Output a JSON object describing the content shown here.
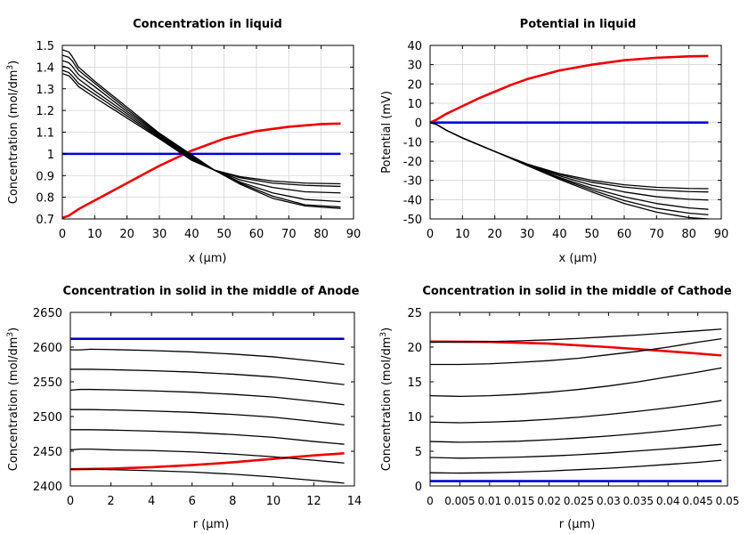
{
  "chart_data": [
    {
      "type": "line",
      "title": "Concentration in liquid",
      "xlabel": "x (µm)",
      "ylabel": "Concentration (mol/dm",
      "ylabel_sup": "3",
      "ylabel_tail": ")",
      "xlim": [
        0,
        90
      ],
      "ylim": [
        0.7,
        1.5
      ],
      "xticks": [
        "0",
        "10",
        "20",
        "30",
        "40",
        "50",
        "60",
        "70",
        "80",
        "90"
      ],
      "yticks": [
        "0.7",
        "0.8",
        "0.9",
        "1",
        "1.1",
        "1.2",
        "1.3",
        "1.4",
        "1.5"
      ],
      "grid": true,
      "series": [
        {
          "color": "#0000dd",
          "x": [
            0,
            86
          ],
          "y": [
            1.0,
            1.0
          ]
        },
        {
          "color": "#ee0000",
          "x": [
            0,
            2,
            5,
            10,
            20,
            30,
            40,
            50,
            60,
            70,
            80,
            86
          ],
          "y": [
            0.705,
            0.715,
            0.745,
            0.785,
            0.865,
            0.945,
            1.015,
            1.07,
            1.105,
            1.125,
            1.137,
            1.14
          ]
        },
        {
          "color": "#000000",
          "x": [
            0,
            2,
            3,
            5,
            10,
            20,
            30,
            40,
            47,
            55,
            65,
            75,
            86
          ],
          "y": [
            1.48,
            1.47,
            1.45,
            1.4,
            1.335,
            1.215,
            1.095,
            0.995,
            0.925,
            0.895,
            0.875,
            0.865,
            0.862
          ]
        },
        {
          "color": "#000000",
          "x": [
            0,
            2,
            3,
            5,
            10,
            20,
            30,
            40,
            47,
            55,
            65,
            75,
            86
          ],
          "y": [
            1.455,
            1.445,
            1.43,
            1.385,
            1.325,
            1.205,
            1.09,
            0.99,
            0.925,
            0.89,
            0.865,
            0.855,
            0.85
          ]
        },
        {
          "color": "#000000",
          "x": [
            0,
            2,
            3,
            5,
            10,
            20,
            30,
            40,
            47,
            55,
            65,
            75,
            86
          ],
          "y": [
            1.43,
            1.42,
            1.405,
            1.365,
            1.31,
            1.195,
            1.085,
            0.985,
            0.925,
            0.88,
            0.845,
            0.825,
            0.82
          ]
        },
        {
          "color": "#000000",
          "x": [
            0,
            2,
            3,
            5,
            10,
            20,
            30,
            40,
            47,
            55,
            65,
            75,
            86
          ],
          "y": [
            1.405,
            1.395,
            1.38,
            1.345,
            1.29,
            1.185,
            1.08,
            0.98,
            0.925,
            0.87,
            0.82,
            0.79,
            0.78
          ]
        },
        {
          "color": "#000000",
          "x": [
            0,
            2,
            3,
            5,
            10,
            20,
            30,
            40,
            47,
            55,
            65,
            75,
            86
          ],
          "y": [
            1.385,
            1.375,
            1.36,
            1.325,
            1.275,
            1.175,
            1.075,
            0.975,
            0.925,
            0.865,
            0.805,
            0.765,
            0.755
          ]
        },
        {
          "color": "#000000",
          "x": [
            0,
            2,
            3,
            5,
            10,
            20,
            30,
            40,
            47,
            55,
            65,
            75,
            86
          ],
          "y": [
            1.37,
            1.36,
            1.345,
            1.31,
            1.26,
            1.165,
            1.07,
            0.97,
            0.925,
            0.86,
            0.795,
            0.76,
            0.748
          ]
        }
      ]
    },
    {
      "type": "line",
      "title": "Potential in liquid",
      "xlabel": "x (µm)",
      "ylabel": "Potential (mV)",
      "xlim": [
        0,
        90
      ],
      "ylim": [
        -50,
        40
      ],
      "xticks": [
        "0",
        "10",
        "20",
        "30",
        "40",
        "50",
        "60",
        "70",
        "80",
        "90"
      ],
      "yticks": [
        "-50",
        "-40",
        "-30",
        "-20",
        "-10",
        "0",
        "10",
        "20",
        "30",
        "40"
      ],
      "grid": true,
      "series": [
        {
          "color": "#0000dd",
          "x": [
            0,
            86
          ],
          "y": [
            0,
            0
          ]
        },
        {
          "color": "#ee0000",
          "x": [
            0,
            2,
            5,
            10,
            15,
            20,
            25,
            30,
            40,
            50,
            60,
            70,
            80,
            86
          ],
          "y": [
            0,
            1.5,
            4.5,
            8.5,
            12.5,
            16,
            19.5,
            22.5,
            27,
            30,
            32.3,
            33.6,
            34.3,
            34.5
          ]
        },
        {
          "color": "#000000",
          "x": [
            0,
            2,
            5,
            10,
            20,
            30,
            40,
            50,
            60,
            70,
            80,
            86
          ],
          "y": [
            0,
            -1,
            -4,
            -8,
            -15,
            -21.5,
            -26.5,
            -30,
            -32.3,
            -33.6,
            -34.2,
            -34.3
          ]
        },
        {
          "color": "#000000",
          "x": [
            0,
            2,
            5,
            10,
            20,
            30,
            40,
            50,
            60,
            70,
            80,
            86
          ],
          "y": [
            0,
            -1,
            -4,
            -8,
            -15,
            -21.7,
            -27,
            -31,
            -33.5,
            -35,
            -35.8,
            -36
          ]
        },
        {
          "color": "#000000",
          "x": [
            0,
            2,
            5,
            10,
            20,
            30,
            40,
            50,
            60,
            70,
            80,
            86
          ],
          "y": [
            0,
            -1,
            -4,
            -8,
            -15,
            -21.8,
            -27.7,
            -32.5,
            -36,
            -38.5,
            -39.8,
            -40.2
          ]
        },
        {
          "color": "#000000",
          "x": [
            0,
            2,
            5,
            10,
            20,
            30,
            40,
            50,
            60,
            70,
            80,
            86
          ],
          "y": [
            0,
            -1,
            -4,
            -8,
            -15,
            -22,
            -28.5,
            -34,
            -38.5,
            -42,
            -44.3,
            -45
          ]
        },
        {
          "color": "#000000",
          "x": [
            0,
            2,
            5,
            10,
            20,
            30,
            40,
            50,
            60,
            70,
            80,
            86
          ],
          "y": [
            0,
            -1,
            -4,
            -8,
            -15,
            -22,
            -29,
            -35,
            -40.5,
            -44.5,
            -47,
            -47.8
          ]
        },
        {
          "color": "#000000",
          "x": [
            0,
            2,
            5,
            10,
            20,
            30,
            40,
            50,
            60,
            70,
            80,
            86
          ],
          "y": [
            0,
            -1,
            -4,
            -8,
            -15,
            -22.3,
            -29.5,
            -36,
            -42,
            -46.5,
            -49.3,
            -50
          ]
        }
      ]
    },
    {
      "type": "line",
      "title": "Concentration in solid in the middle of Anode",
      "xlabel": "r (µm)",
      "ylabel": "Concentration (mol/dm",
      "ylabel_sup": "3",
      "ylabel_tail": ")",
      "xlim": [
        0,
        14
      ],
      "ylim": [
        2400,
        2650
      ],
      "xticks": [
        "0",
        "2",
        "4",
        "6",
        "8",
        "10",
        "12",
        "14"
      ],
      "yticks": [
        "2400",
        "2450",
        "2500",
        "2550",
        "2600",
        "2650"
      ],
      "grid": false,
      "series": [
        {
          "color": "#0000dd",
          "x": [
            0,
            13.5
          ],
          "y": [
            2612,
            2612
          ]
        },
        {
          "color": "#ee0000",
          "x": [
            0,
            2,
            4,
            6,
            8,
            10,
            12,
            13.5
          ],
          "y": [
            2424,
            2425,
            2427,
            2430,
            2434,
            2439,
            2444,
            2447
          ]
        },
        {
          "color": "#000000",
          "x": [
            0,
            0.5,
            1,
            2,
            4,
            6,
            8,
            10,
            12,
            13.5
          ],
          "y": [
            2596,
            2596,
            2597,
            2596.5,
            2595,
            2593,
            2590,
            2586,
            2580,
            2575
          ]
        },
        {
          "color": "#000000",
          "x": [
            0,
            0.5,
            1,
            2,
            4,
            6,
            8,
            10,
            12,
            13.5
          ],
          "y": [
            2568,
            2568,
            2568,
            2567.5,
            2566,
            2564,
            2561,
            2557,
            2551,
            2546
          ]
        },
        {
          "color": "#000000",
          "x": [
            0,
            0.5,
            1,
            2,
            4,
            6,
            8,
            10,
            12,
            13.5
          ],
          "y": [
            2538,
            2539,
            2539,
            2538.5,
            2537,
            2535,
            2532,
            2528,
            2522,
            2517
          ]
        },
        {
          "color": "#000000",
          "x": [
            0,
            0.5,
            1,
            2,
            4,
            6,
            8,
            10,
            12,
            13.5
          ],
          "y": [
            2510,
            2510,
            2510,
            2509.5,
            2508,
            2506,
            2503,
            2499,
            2493,
            2488
          ]
        },
        {
          "color": "#000000",
          "x": [
            0,
            0.5,
            1,
            2,
            4,
            6,
            8,
            10,
            12,
            13.5
          ],
          "y": [
            2481,
            2481,
            2481,
            2480.5,
            2479,
            2477,
            2474,
            2470,
            2464,
            2460
          ]
        },
        {
          "color": "#000000",
          "x": [
            0,
            0.5,
            1,
            2,
            4,
            6,
            8,
            10,
            12,
            13.5
          ],
          "y": [
            2452,
            2453,
            2453,
            2452,
            2451,
            2449,
            2446,
            2442,
            2437,
            2433
          ]
        },
        {
          "color": "#000000",
          "x": [
            0,
            0.5,
            1,
            2,
            4,
            6,
            8,
            10,
            12,
            13.5
          ],
          "y": [
            2424,
            2424,
            2424,
            2423.5,
            2422,
            2420,
            2417,
            2413,
            2408,
            2404
          ]
        }
      ]
    },
    {
      "type": "line",
      "title": "Concentration in solid in the middle of Cathode",
      "xlabel": "r (µm)",
      "ylabel": "Concentration (mol/dm",
      "ylabel_sup": "3",
      "ylabel_tail": ")",
      "xlim": [
        0,
        0.05
      ],
      "ylim": [
        0,
        25
      ],
      "xticks": [
        "0",
        "0.005",
        "0.01",
        "0.015",
        "0.02",
        "0.025",
        "0.03",
        "0.035",
        "0.04",
        "0.045",
        "0.05"
      ],
      "yticks": [
        "0",
        "5",
        "10",
        "15",
        "20",
        "25"
      ],
      "grid": false,
      "series": [
        {
          "color": "#0000dd",
          "x": [
            0,
            0.049
          ],
          "y": [
            0.7,
            0.7
          ]
        },
        {
          "color": "#ee0000",
          "x": [
            0,
            0.01,
            0.02,
            0.03,
            0.04,
            0.049
          ],
          "y": [
            20.8,
            20.75,
            20.5,
            20.0,
            19.4,
            18.8
          ]
        },
        {
          "color": "#000000",
          "x": [
            0,
            0.005,
            0.01,
            0.015,
            0.02,
            0.025,
            0.03,
            0.035,
            0.04,
            0.045,
            0.049
          ],
          "y": [
            20.7,
            20.75,
            20.8,
            20.9,
            21.05,
            21.25,
            21.5,
            21.75,
            22.05,
            22.35,
            22.6
          ]
        },
        {
          "color": "#000000",
          "x": [
            0,
            0.005,
            0.01,
            0.015,
            0.02,
            0.025,
            0.03,
            0.035,
            0.04,
            0.045,
            0.049
          ],
          "y": [
            17.5,
            17.5,
            17.6,
            17.8,
            18.05,
            18.4,
            18.9,
            19.4,
            20.0,
            20.7,
            21.2
          ]
        },
        {
          "color": "#000000",
          "x": [
            0,
            0.005,
            0.01,
            0.015,
            0.02,
            0.025,
            0.03,
            0.035,
            0.04,
            0.045,
            0.049
          ],
          "y": [
            13.0,
            12.9,
            13.0,
            13.2,
            13.5,
            13.9,
            14.4,
            15.0,
            15.7,
            16.4,
            17.0
          ]
        },
        {
          "color": "#000000",
          "x": [
            0,
            0.005,
            0.01,
            0.015,
            0.02,
            0.025,
            0.03,
            0.035,
            0.04,
            0.045,
            0.049
          ],
          "y": [
            9.2,
            9.1,
            9.2,
            9.35,
            9.6,
            9.9,
            10.3,
            10.75,
            11.25,
            11.8,
            12.3
          ]
        },
        {
          "color": "#000000",
          "x": [
            0,
            0.005,
            0.01,
            0.015,
            0.02,
            0.025,
            0.03,
            0.035,
            0.04,
            0.045,
            0.049
          ],
          "y": [
            6.4,
            6.3,
            6.35,
            6.45,
            6.65,
            6.9,
            7.2,
            7.55,
            7.95,
            8.4,
            8.8
          ]
        },
        {
          "color": "#000000",
          "x": [
            0,
            0.005,
            0.01,
            0.015,
            0.02,
            0.025,
            0.03,
            0.035,
            0.04,
            0.045,
            0.049
          ],
          "y": [
            4.1,
            4.0,
            4.05,
            4.15,
            4.3,
            4.5,
            4.75,
            5.05,
            5.35,
            5.7,
            6.0
          ]
        },
        {
          "color": "#000000",
          "x": [
            0,
            0.005,
            0.01,
            0.015,
            0.02,
            0.025,
            0.03,
            0.035,
            0.04,
            0.045,
            0.049
          ],
          "y": [
            1.9,
            1.85,
            1.9,
            2.0,
            2.15,
            2.35,
            2.55,
            2.8,
            3.1,
            3.4,
            3.7
          ]
        }
      ]
    }
  ]
}
